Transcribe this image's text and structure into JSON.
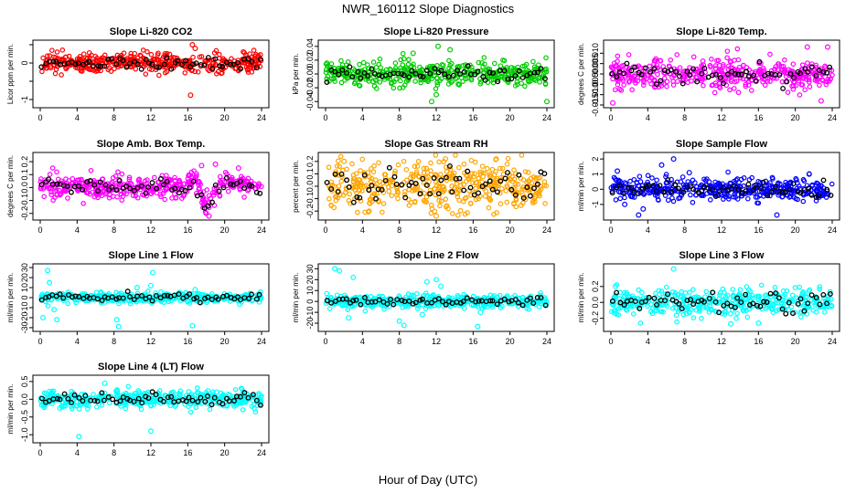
{
  "figure": {
    "title": "NWR_160112  Slope Diagnostics",
    "xlabel": "Hour of Day (UTC)"
  },
  "chart_data": [
    {
      "type": "scatter",
      "title": "Slope Li-820 CO2",
      "ylabel": "Licor ppm per min.",
      "color": "#ff0000",
      "xlim": [
        0,
        24
      ],
      "ylim": [
        -1.15,
        0.55
      ],
      "yticks": [
        -1,
        -0.5,
        0,
        0.5
      ],
      "yticklabels": [
        "-1",
        "",
        "0",
        ""
      ],
      "xticks": [
        0,
        4,
        8,
        12,
        16,
        20,
        24
      ],
      "spread": 0.13,
      "outliers": [
        [
          16.3,
          -0.88
        ],
        [
          16.5,
          0.5
        ],
        [
          16.8,
          0.4
        ]
      ],
      "fastmarkers": true
    },
    {
      "type": "scatter",
      "title": "Slope Li-820 Pressure",
      "ylabel": "kPa per min.",
      "color": "#00cc00",
      "xlim": [
        0,
        24
      ],
      "ylim": [
        -0.045,
        0.045
      ],
      "yticks": [
        -0.04,
        -0.02,
        0,
        0.02,
        0.04
      ],
      "yticklabels": [
        "-0.04",
        "-0.02",
        "0.00",
        "0.02",
        "0.04"
      ],
      "xticks": [
        0,
        4,
        8,
        12,
        16,
        20,
        24
      ],
      "spread": 0.008,
      "outliers": [
        [
          9.5,
          0.03
        ],
        [
          12.2,
          0.04
        ],
        [
          13.5,
          0.035
        ],
        [
          12.0,
          -0.03
        ],
        [
          11.5,
          -0.04
        ],
        [
          24,
          -0.04
        ],
        [
          8.5,
          0.022
        ]
      ],
      "fastmarkers": true
    },
    {
      "type": "scatter",
      "title": "Slope Li-820 Temp.",
      "ylabel": "degrees C per min.",
      "color": "#ff00ff",
      "xlim": [
        0,
        24
      ],
      "ylim": [
        -0.015,
        0.015
      ],
      "yticks": [
        -0.015,
        -0.01,
        -0.005,
        0,
        0.005,
        0.01
      ],
      "yticklabels": [
        "-0.015",
        "-0.010",
        "-0.005",
        "0.000",
        "0.005",
        "0.010"
      ],
      "xticks": [
        0,
        4,
        8,
        12,
        16,
        20,
        24
      ],
      "spread": 0.0035,
      "outliers": [
        [
          0.2,
          -0.014
        ],
        [
          21.3,
          0.013
        ],
        [
          23.5,
          0.013
        ],
        [
          22.8,
          -0.013
        ]
      ],
      "fastmarkers": false
    },
    {
      "type": "scatter",
      "title": "Slope Amb. Box Temp.",
      "ylabel": "degrees C per min.",
      "color": "#ff00ff",
      "xlim": [
        0,
        24
      ],
      "ylim": [
        -0.23,
        0.25
      ],
      "yticks": [
        -0.2,
        -0.1,
        0,
        0.1,
        0.2
      ],
      "yticklabels": [
        "-0.2",
        "-0.1",
        "0.0",
        "0.1",
        "0.2"
      ],
      "xticks": [
        0,
        4,
        8,
        12,
        16,
        20,
        24
      ],
      "spread": 0.045,
      "outliers": [
        [
          17.5,
          0.17
        ],
        [
          18.0,
          -0.2
        ],
        [
          18.3,
          -0.22
        ],
        [
          19.0,
          0.18
        ],
        [
          21.5,
          0.15
        ]
      ],
      "fastmarkers": false
    },
    {
      "type": "scatter",
      "title": "Slope Gas Stream RH",
      "ylabel": "percent per min.",
      "color": "#ffa500",
      "xlim": [
        0,
        24
      ],
      "ylim": [
        -0.25,
        0.25
      ],
      "yticks": [
        -0.2,
        -0.1,
        0,
        0.1,
        0.2
      ],
      "yticklabels": [
        "-0.2",
        "-0.1",
        "0.0",
        "0.1",
        "0.2"
      ],
      "xticks": [
        0,
        4,
        8,
        12,
        16,
        20,
        24
      ],
      "spread": 0.095,
      "outliers": [
        [
          2.0,
          0.2
        ],
        [
          12.0,
          -0.24
        ],
        [
          13.0,
          0.22
        ],
        [
          18.5,
          0.22
        ]
      ],
      "fastmarkers": true
    },
    {
      "type": "scatter",
      "title": "Slope Sample Flow",
      "ylabel": "ml/min per min.",
      "color": "#0000ff",
      "xlim": [
        0,
        24
      ],
      "ylim": [
        -1.85,
        2.25
      ],
      "yticks": [
        -1,
        0,
        1,
        2
      ],
      "yticklabels": [
        "-1",
        "0",
        "1",
        "2"
      ],
      "xticks": [
        0,
        4,
        8,
        12,
        16,
        20,
        24
      ],
      "spread": 0.35,
      "outliers": [
        [
          3.0,
          -1.7
        ],
        [
          3.5,
          -1.3
        ],
        [
          5.5,
          1.6
        ],
        [
          6.8,
          2.0
        ],
        [
          0.7,
          1.2
        ],
        [
          1.5,
          -1.0
        ],
        [
          18.0,
          -1.7
        ],
        [
          21.5,
          1.0
        ],
        [
          8.5,
          1.1
        ]
      ],
      "fastmarkers": false
    },
    {
      "type": "scatter",
      "title": "Slope Line 1 Flow",
      "ylabel": "ml/min per min.",
      "color": "#00ffff",
      "xlim": [
        0,
        24
      ],
      "ylim": [
        -31,
        31
      ],
      "yticks": [
        -30,
        -20,
        -10,
        0,
        10,
        20,
        30
      ],
      "yticklabels": [
        "-30",
        "-20",
        "-10",
        "0",
        "10",
        "20",
        "30"
      ],
      "xticks": [
        0,
        4,
        8,
        12,
        16,
        20,
        24
      ],
      "spread": 2.4,
      "outliers": [
        [
          0.8,
          27
        ],
        [
          1.0,
          15
        ],
        [
          1.5,
          -12
        ],
        [
          0.3,
          -20
        ],
        [
          1.8,
          -22
        ],
        [
          8.3,
          -22
        ],
        [
          8.5,
          -29
        ],
        [
          12.2,
          25
        ],
        [
          12.0,
          12
        ],
        [
          16.5,
          -28
        ],
        [
          10.5,
          10
        ],
        [
          16.8,
          8
        ]
      ],
      "fastmarkers": false
    },
    {
      "type": "scatter",
      "title": "Slope Line 2 Flow",
      "ylabel": "ml/min per min.",
      "color": "#00ffff",
      "xlim": [
        0,
        24
      ],
      "ylim": [
        -25,
        32
      ],
      "yticks": [
        -20,
        -10,
        0,
        10,
        20,
        30
      ],
      "yticklabels": [
        "-20",
        "-10",
        "0",
        "10",
        "20",
        "30"
      ],
      "xticks": [
        0,
        4,
        8,
        12,
        16,
        20,
        24
      ],
      "spread": 2.8,
      "outliers": [
        [
          1.0,
          30
        ],
        [
          1.5,
          28
        ],
        [
          2.5,
          -15
        ],
        [
          3.0,
          22
        ],
        [
          8.0,
          -18
        ],
        [
          8.5,
          -22
        ],
        [
          10.5,
          -12
        ],
        [
          11.0,
          18
        ],
        [
          12.0,
          20
        ],
        [
          12.5,
          14
        ],
        [
          16.5,
          -23
        ],
        [
          16.8,
          -10
        ]
      ],
      "fastmarkers": false
    },
    {
      "type": "scatter",
      "title": "Slope Line 3 Flow",
      "ylabel": "ml/min per min.",
      "color": "#00ffff",
      "xlim": [
        0,
        24
      ],
      "ylim": [
        -0.33,
        0.45
      ],
      "yticks": [
        -0.2,
        0,
        0.2
      ],
      "yticklabels": [
        "-0.2",
        "0.0",
        "0.2"
      ],
      "xticks": [
        0,
        4,
        8,
        12,
        16,
        20,
        24
      ],
      "spread": 0.08,
      "outliers": [
        [
          6.8,
          0.42
        ],
        [
          13.0,
          -0.27
        ],
        [
          16.0,
          -0.26
        ],
        [
          0.5,
          0.2
        ]
      ],
      "fastmarkers": false
    },
    {
      "type": "scatter",
      "title": "Slope Line 4 (LT) Flow",
      "ylabel": "ml/min per min.",
      "color": "#00ffff",
      "xlim": [
        0,
        24
      ],
      "ylim": [
        -1.15,
        0.6
      ],
      "yticks": [
        -1,
        -0.5,
        0,
        0.5
      ],
      "yticklabels": [
        "-1.0",
        "-0.5",
        "0.0",
        "0.5"
      ],
      "xticks": [
        0,
        4,
        8,
        12,
        16,
        20,
        24
      ],
      "spread": 0.12,
      "outliers": [
        [
          4.2,
          -1.05
        ],
        [
          12.0,
          -0.9
        ],
        [
          7.0,
          0.45
        ]
      ],
      "fastmarkers": false
    }
  ]
}
